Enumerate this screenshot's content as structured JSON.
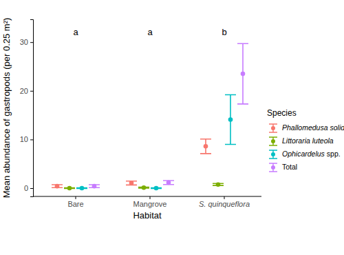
{
  "chart_data": {
    "type": "point",
    "x_label": "Habitat",
    "y_label": "Mean abundance of gastropods (per 0.25 m²)",
    "legend_title": "Species",
    "legend": "right",
    "grid": false,
    "categories": [
      "Bare",
      "Mangrove",
      "S. quinqueflora"
    ],
    "series": [
      {
        "name": "Phallomedusa solida",
        "color": "#F8766D",
        "values": [
          0.4,
          1.05,
          8.6
        ],
        "errors": [
          0.3,
          0.4,
          1.5
        ]
      },
      {
        "name": "Littoraria luteola",
        "color": "#7CAE00",
        "values": [
          0.0,
          0.1,
          0.75
        ],
        "errors": [
          0.05,
          0.1,
          0.2
        ]
      },
      {
        "name": "Ophicardelus spp.",
        "color": "#00BFC4",
        "values": [
          0.0,
          0.0,
          14.1
        ],
        "errors": [
          0.05,
          0.05,
          5.1
        ]
      },
      {
        "name": "Total",
        "color": "#C77CFF",
        "values": [
          0.4,
          1.15,
          23.5
        ],
        "errors": [
          0.3,
          0.4,
          6.2
        ]
      }
    ],
    "ylim": [
      -1.7,
      34.7
    ],
    "yticks": [
      0,
      10,
      20,
      30
    ],
    "annotations": [
      {
        "text": "a",
        "x": "Bare",
        "y": 32
      },
      {
        "text": "a",
        "x": "Mangrove",
        "y": 32
      },
      {
        "text": "b",
        "x": "S. quinqueflora",
        "y": 32
      }
    ]
  }
}
